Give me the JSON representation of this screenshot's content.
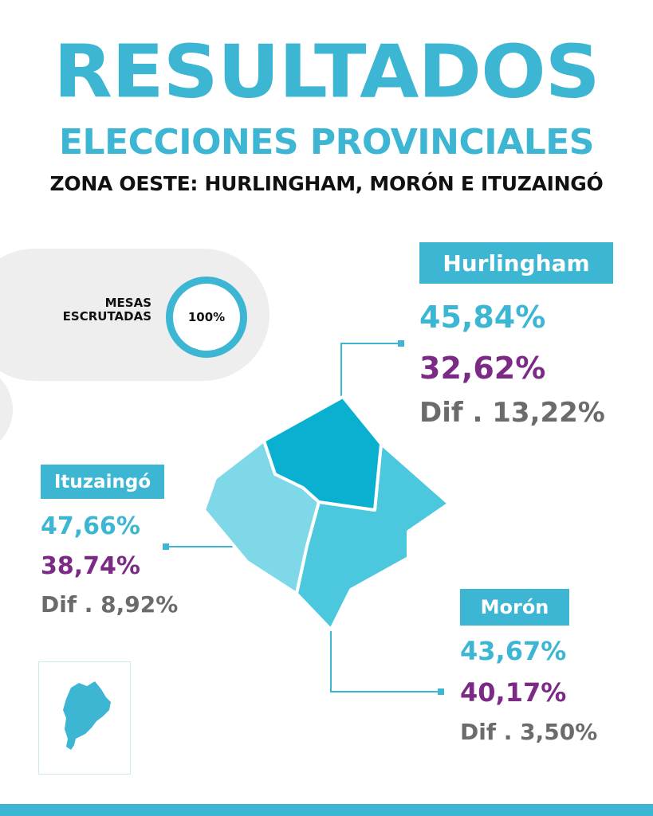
{
  "header": {
    "title": "RESULTADOS",
    "subtitle": "ELECCIONES PROVINCIALES",
    "zone": "ZONA OESTE: HURLINGHAM, MORÓN E ITUZAINGÓ"
  },
  "mesas": {
    "label_line1": "MESAS",
    "label_line2": "ESCRUTADAS",
    "percent": "100%",
    "percent_value": 100
  },
  "districts": {
    "hurlingham": {
      "name": "Hurlingham",
      "first": "45,84%",
      "second": "32,62%",
      "diff": "Dif . 13,22%"
    },
    "ituzaingo": {
      "name": "Ituzaingó",
      "first": "47,66%",
      "second": "38,74%",
      "diff": "Dif . 8,92%"
    },
    "moron": {
      "name": "Morón",
      "first": "43,67%",
      "second": "40,17%",
      "diff": "Dif . 3,50%"
    }
  },
  "colors": {
    "accent": "#3cb6d3",
    "second_party": "#7b2a86",
    "diff": "#6b6b6b",
    "map_hurlingham": "#0ab0cf",
    "map_moron": "#4cc8de",
    "map_ituzaingo": "#7fd8e8"
  },
  "icons": {
    "province_map": "buenos-aires-province-map-icon"
  }
}
